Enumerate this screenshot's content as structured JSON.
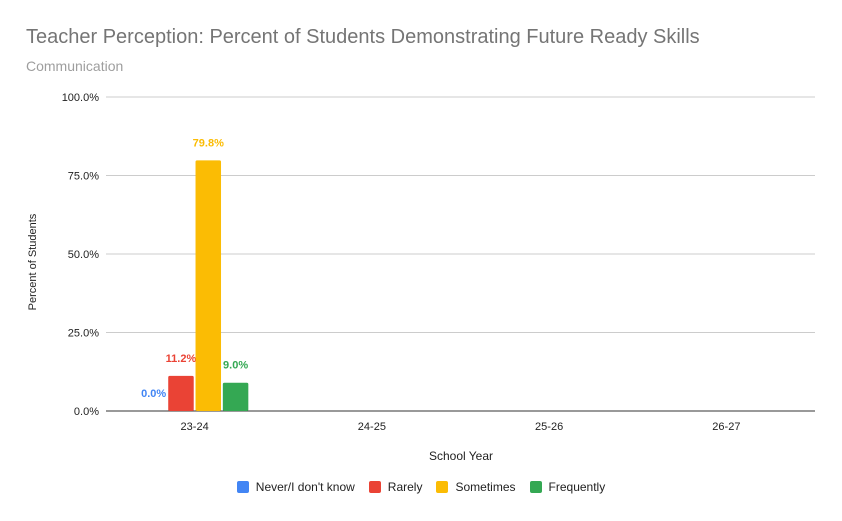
{
  "chart_data": {
    "type": "bar",
    "title": "Teacher Perception: Percent of Students Demonstrating Future Ready Skills",
    "subtitle": "Communication",
    "xlabel": "School Year",
    "ylabel": "Percent of Students",
    "categories": [
      "23-24",
      "24-25",
      "25-26",
      "26-27"
    ],
    "ylim": [
      0,
      100
    ],
    "yticks": [
      "0.0%",
      "25.0%",
      "50.0%",
      "75.0%",
      "100.0%"
    ],
    "grid": true,
    "legend_position": "bottom",
    "series": [
      {
        "name": "Never/I don't know",
        "color": "#4285f4",
        "values": [
          0.0,
          null,
          null,
          null
        ],
        "labels": [
          "0.0%",
          "",
          "",
          ""
        ]
      },
      {
        "name": "Rarely",
        "color": "#ea4335",
        "values": [
          11.2,
          null,
          null,
          null
        ],
        "labels": [
          "11.2%",
          "",
          "",
          ""
        ]
      },
      {
        "name": "Sometimes",
        "color": "#fbbc04",
        "values": [
          79.8,
          null,
          null,
          null
        ],
        "labels": [
          "79.8%",
          "",
          "",
          ""
        ]
      },
      {
        "name": "Frequently",
        "color": "#34a853",
        "values": [
          9.0,
          null,
          null,
          null
        ],
        "labels": [
          "9.0%",
          "",
          "",
          ""
        ]
      }
    ]
  }
}
